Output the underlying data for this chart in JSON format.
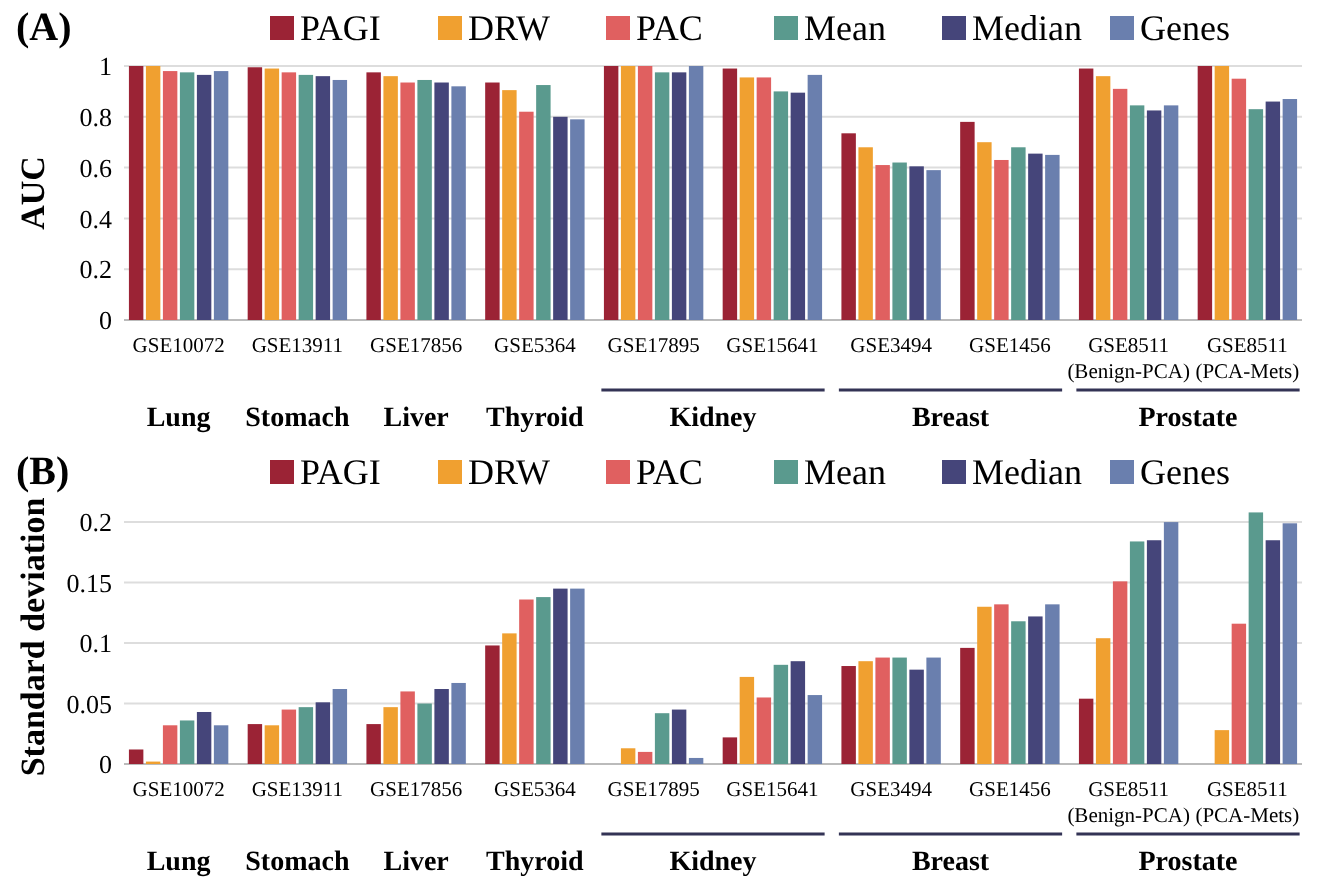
{
  "chart_data": [
    {
      "type": "bar",
      "title": "(A)",
      "ylabel": "AUC",
      "categories": [
        "GSE10072",
        "GSE13911",
        "GSE17856",
        "GSE5364",
        "GSE17895",
        "GSE15641",
        "GSE3494",
        "GSE1456",
        "GSE8511\n(Benign-PCA)",
        "GSE8511\n(PCA-Mets)"
      ],
      "series": [
        {
          "name": "PAGI",
          "color": "#9b2335",
          "values": [
            1.0,
            0.995,
            0.975,
            0.935,
            1.0,
            0.99,
            0.735,
            0.78,
            0.99,
            1.0
          ]
        },
        {
          "name": "DRW",
          "color": "#f0a030",
          "values": [
            1.0,
            0.99,
            0.96,
            0.905,
            1.0,
            0.955,
            0.68,
            0.7,
            0.96,
            1.0
          ]
        },
        {
          "name": "PAC",
          "color": "#e06060",
          "values": [
            0.98,
            0.975,
            0.935,
            0.82,
            1.0,
            0.955,
            0.61,
            0.63,
            0.91,
            0.95
          ]
        },
        {
          "name": "Mean",
          "color": "#5a9a8e",
          "values": [
            0.975,
            0.965,
            0.945,
            0.925,
            0.975,
            0.9,
            0.62,
            0.68,
            0.845,
            0.83
          ]
        },
        {
          "name": "Median",
          "color": "#45457a",
          "values": [
            0.965,
            0.96,
            0.935,
            0.8,
            0.975,
            0.895,
            0.605,
            0.655,
            0.825,
            0.86
          ]
        },
        {
          "name": "Genes",
          "color": "#6a7fae",
          "values": [
            0.98,
            0.945,
            0.92,
            0.79,
            1.0,
            0.965,
            0.59,
            0.65,
            0.845,
            0.87
          ]
        }
      ],
      "ylim": [
        0,
        1
      ],
      "yticks": [
        0,
        0.2,
        0.4,
        0.6,
        0.8,
        1
      ],
      "grid": "y",
      "legend": "top",
      "annotations": [
        "Lung",
        "Stomach",
        "Liver",
        "Thyroid",
        "Kidney",
        "Breast",
        "Prostate"
      ]
    },
    {
      "type": "bar",
      "title": "(B)",
      "ylabel": "Standard deviation",
      "categories": [
        "GSE10072",
        "GSE13911",
        "GSE17856",
        "GSE5364",
        "GSE17895",
        "GSE15641",
        "GSE3494",
        "GSE1456",
        "GSE8511\n(Benign-PCA)",
        "GSE8511\n(PCA-Mets)"
      ],
      "series": [
        {
          "name": "PAGI",
          "color": "#9b2335",
          "values": [
            0.012,
            0.033,
            0.033,
            0.098,
            0,
            0.022,
            0.081,
            0.096,
            0.054,
            0
          ]
        },
        {
          "name": "DRW",
          "color": "#f0a030",
          "values": [
            0.002,
            0.032,
            0.047,
            0.108,
            0.013,
            0.072,
            0.085,
            0.13,
            0.104,
            0.028
          ]
        },
        {
          "name": "PAC",
          "color": "#e06060",
          "values": [
            0.032,
            0.045,
            0.06,
            0.136,
            0.01,
            0.055,
            0.088,
            0.132,
            0.151,
            0.116
          ]
        },
        {
          "name": "Mean",
          "color": "#5a9a8e",
          "values": [
            0.036,
            0.047,
            0.05,
            0.138,
            0.042,
            0.082,
            0.088,
            0.118,
            0.184,
            0.208
          ]
        },
        {
          "name": "Median",
          "color": "#45457a",
          "values": [
            0.043,
            0.051,
            0.062,
            0.145,
            0.045,
            0.085,
            0.078,
            0.122,
            0.185,
            0.185
          ]
        },
        {
          "name": "Genes",
          "color": "#6a7fae",
          "values": [
            0.032,
            0.062,
            0.067,
            0.145,
            0.005,
            0.057,
            0.088,
            0.132,
            0.2,
            0.199
          ]
        }
      ],
      "ylim": [
        0,
        0.21
      ],
      "yticks": [
        0,
        0.05,
        0.1,
        0.15,
        0.2
      ],
      "grid": "y",
      "legend": "top",
      "annotations": [
        "Lung",
        "Stomach",
        "Liver",
        "Thyroid",
        "Kidney",
        "Breast",
        "Prostate"
      ]
    }
  ]
}
